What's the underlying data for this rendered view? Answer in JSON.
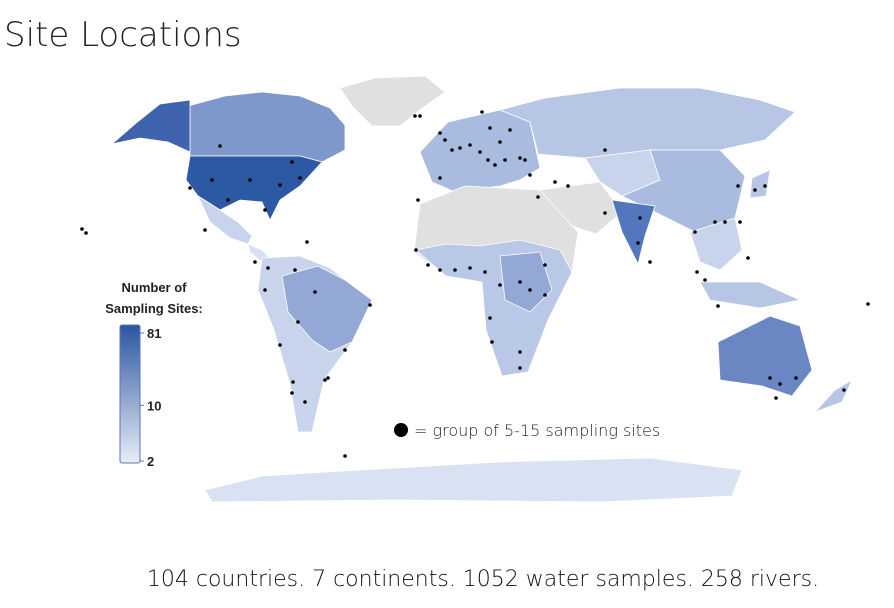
{
  "title": "Site Locations",
  "legend": {
    "title_lines": [
      "Number of",
      "Sampling Sites:"
    ],
    "scale": "log",
    "range": [
      2,
      81
    ],
    "ticks": [
      81,
      10,
      2
    ],
    "color_low": "#e8edf8",
    "color_high": "#2c55a0"
  },
  "annotation": "= group of 5-15 sampling sites",
  "footer": "104 countries. 7 continents. 1052 water samples. 258 rivers."
}
